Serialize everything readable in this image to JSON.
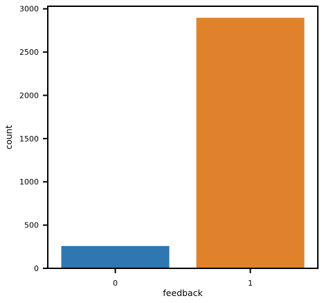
{
  "chart_data": {
    "type": "bar",
    "categories": [
      "0",
      "1"
    ],
    "values": [
      258,
      2897
    ],
    "colors": [
      "#2e77b0",
      "#e0822c"
    ],
    "xlabel": "feedback",
    "ylabel": "count",
    "ylim": [
      0,
      3030
    ],
    "yticks": [
      0,
      500,
      1000,
      1500,
      2000,
      2500,
      3000
    ],
    "grid": false,
    "legend": "none"
  }
}
